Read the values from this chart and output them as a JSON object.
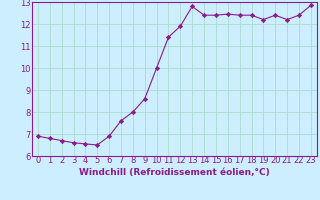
{
  "x": [
    0,
    1,
    2,
    3,
    4,
    5,
    6,
    7,
    8,
    9,
    10,
    11,
    12,
    13,
    14,
    15,
    16,
    17,
    18,
    19,
    20,
    21,
    22,
    23
  ],
  "y": [
    6.9,
    6.8,
    6.7,
    6.6,
    6.55,
    6.5,
    6.9,
    7.6,
    8.0,
    8.6,
    10.0,
    11.4,
    11.9,
    12.8,
    12.4,
    12.4,
    12.45,
    12.4,
    12.4,
    12.2,
    12.4,
    12.2,
    12.4,
    12.85
  ],
  "line_color": "#8b1a8b",
  "marker": "D",
  "marker_size": 2.2,
  "background_color": "#cceeff",
  "grid_color": "#aaddcc",
  "xlabel": "Windchill (Refroidissement éolien,°C)",
  "xlabel_fontsize": 6.5,
  "ylim": [
    6,
    13
  ],
  "xlim": [
    -0.5,
    23.5
  ],
  "yticks": [
    6,
    7,
    8,
    9,
    10,
    11,
    12,
    13
  ],
  "xticks": [
    0,
    1,
    2,
    3,
    4,
    5,
    6,
    7,
    8,
    9,
    10,
    11,
    12,
    13,
    14,
    15,
    16,
    17,
    18,
    19,
    20,
    21,
    22,
    23
  ],
  "tick_fontsize": 6.0
}
